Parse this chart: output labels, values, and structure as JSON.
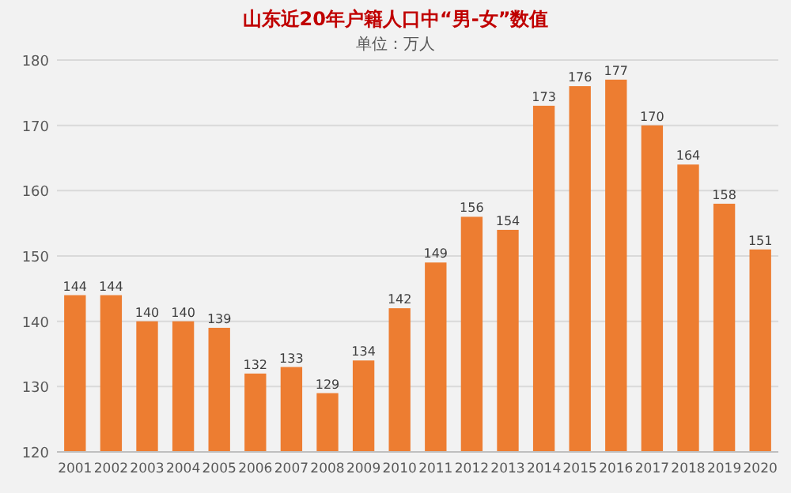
{
  "chart_data": {
    "type": "bar",
    "title": "山东近20年户籍人口中“男-女”数值",
    "subtitle": "单位：万人",
    "categories": [
      "2001",
      "2002",
      "2003",
      "2004",
      "2005",
      "2006",
      "2007",
      "2008",
      "2009",
      "2010",
      "2011",
      "2012",
      "2013",
      "2014",
      "2015",
      "2016",
      "2017",
      "2018",
      "2019",
      "2020"
    ],
    "values": [
      144,
      144,
      140,
      140,
      139,
      132,
      133,
      129,
      134,
      142,
      149,
      156,
      154,
      173,
      176,
      177,
      170,
      164,
      158,
      151
    ],
    "color": "#ed7d31",
    "ylim": [
      120,
      180
    ],
    "yticks": [
      120,
      130,
      140,
      150,
      160,
      170,
      180
    ],
    "grid": "y",
    "data_labels": true
  }
}
